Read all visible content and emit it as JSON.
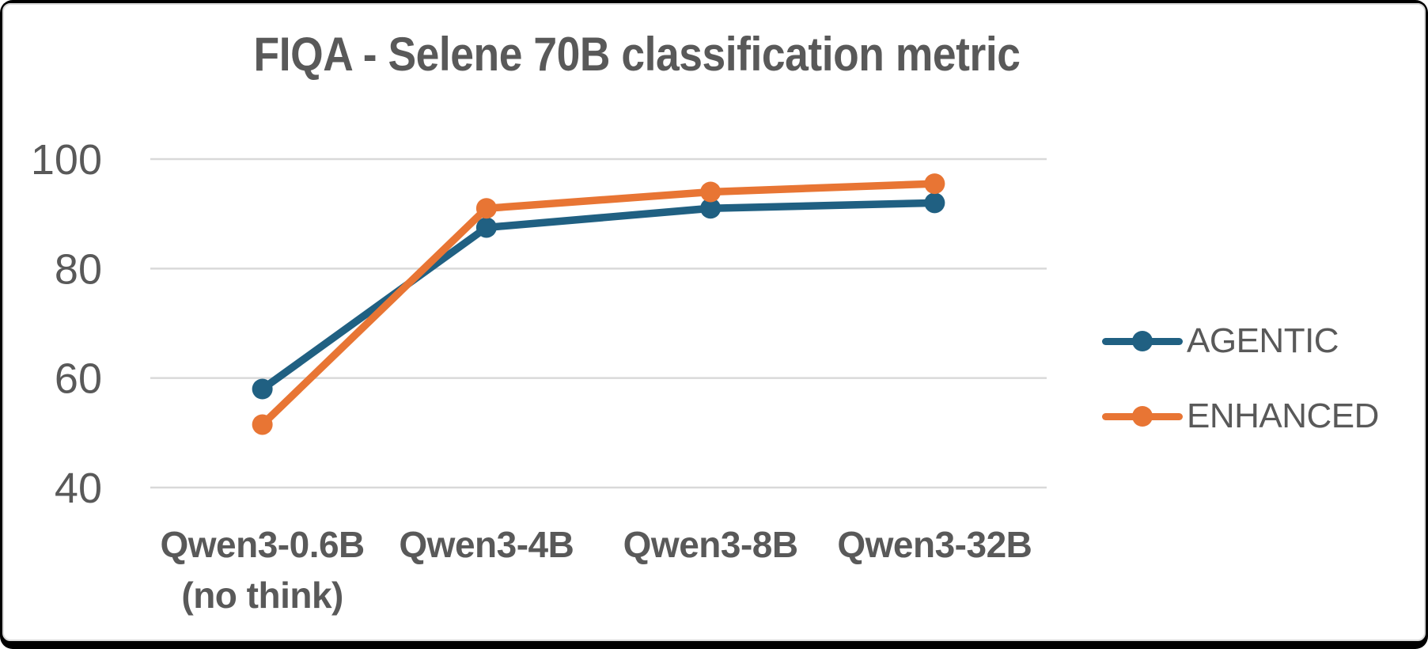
{
  "title": "FIQA - Selene 70B classification metric",
  "chart_data": {
    "type": "line",
    "title": "FIQA - Selene 70B classification metric",
    "categories": [
      "Qwen3-0.6B (no think)",
      "Qwen3-4B",
      "Qwen3-8B",
      "Qwen3-32B"
    ],
    "category_display_lines": [
      [
        "Qwen3-0.6B",
        "(no think)"
      ],
      [
        "Qwen3-4B"
      ],
      [
        "Qwen3-8B"
      ],
      [
        "Qwen3-32B"
      ]
    ],
    "series": [
      {
        "name": "AGENTIC",
        "color": "#206082",
        "values": [
          58,
          87.5,
          91,
          92
        ]
      },
      {
        "name": "ENHANCED",
        "color": "#E87534",
        "values": [
          51.5,
          91,
          94,
          95.5
        ]
      }
    ],
    "xlabel": "",
    "ylabel": "",
    "ylim": [
      40,
      100
    ],
    "yticks": [
      40,
      60,
      80,
      100
    ],
    "grid": true,
    "legend_position": "right"
  },
  "colors": {
    "text": "#595959",
    "gridline": "#D9D9D9",
    "background": "#FFFFFF",
    "frame_border": "#000000",
    "inner_border": "#DADADA"
  }
}
